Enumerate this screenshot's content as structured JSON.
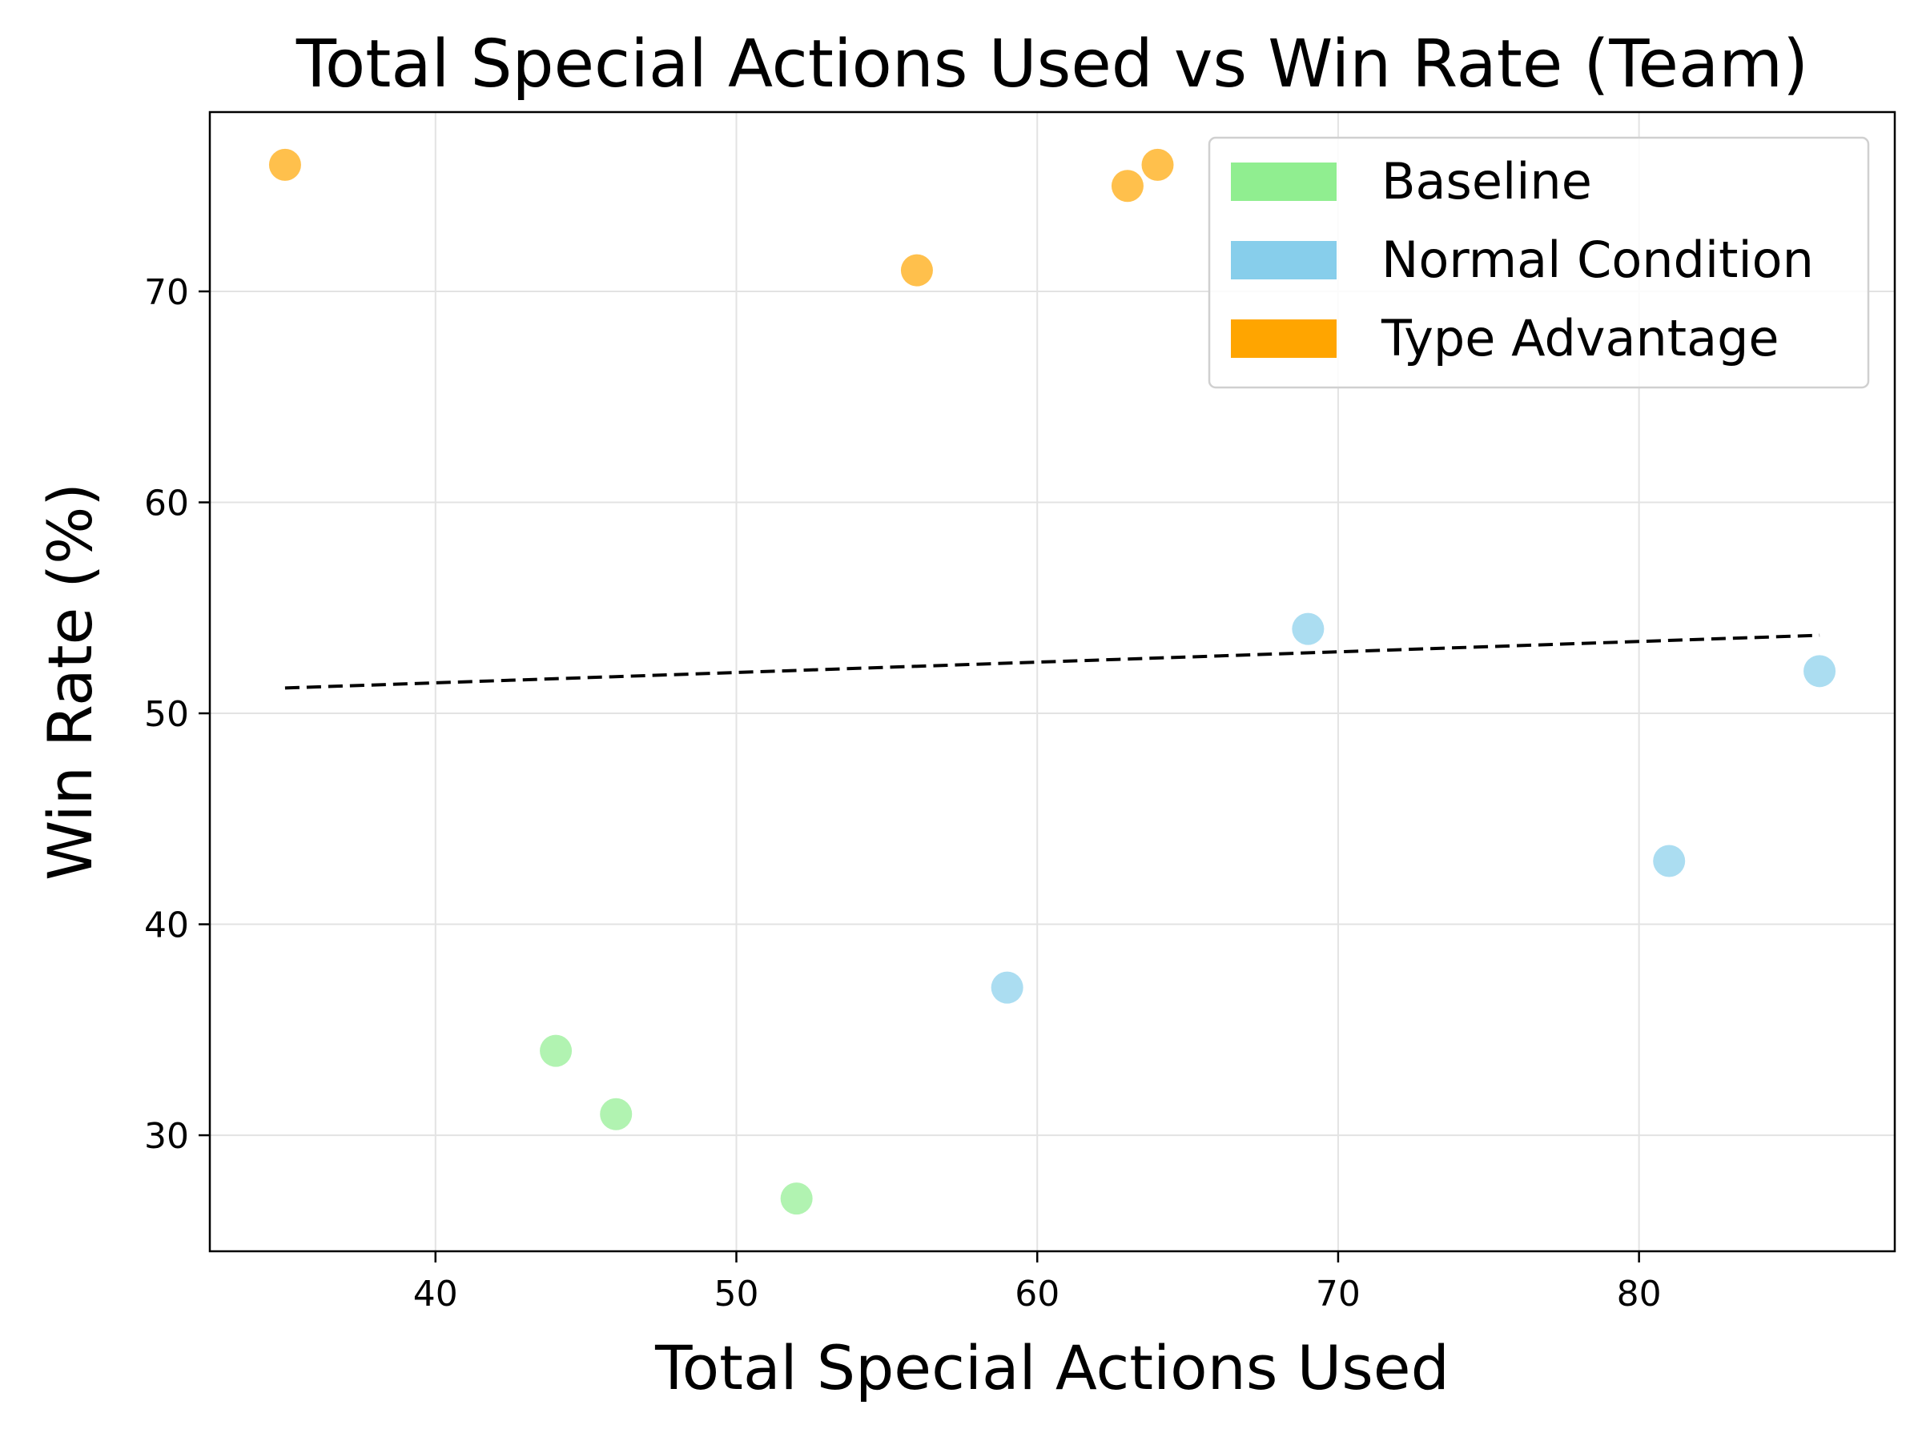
{
  "chart_data": {
    "type": "scatter",
    "title": "Total Special Actions Used vs Win Rate (Team)",
    "xlabel": "Total Special Actions Used",
    "ylabel": "Win Rate (%)",
    "xlim": [
      32.5,
      88.5
    ],
    "ylim": [
      24.5,
      78.5
    ],
    "xticks": [
      40,
      50,
      60,
      70,
      80
    ],
    "yticks": [
      30,
      40,
      50,
      60,
      70
    ],
    "grid": true,
    "legend_position": "upper right",
    "series": [
      {
        "name": "Baseline",
        "color": "#90ee90",
        "points": [
          {
            "x": 44,
            "y": 34
          },
          {
            "x": 46,
            "y": 31
          },
          {
            "x": 52,
            "y": 27
          }
        ]
      },
      {
        "name": "Normal Condition",
        "color": "#87ceeb",
        "points": [
          {
            "x": 59,
            "y": 37
          },
          {
            "x": 69,
            "y": 54
          },
          {
            "x": 81,
            "y": 43
          },
          {
            "x": 86,
            "y": 52
          }
        ]
      },
      {
        "name": "Type Advantage",
        "color": "#ffa500",
        "points": [
          {
            "x": 35,
            "y": 76
          },
          {
            "x": 56,
            "y": 71
          },
          {
            "x": 63,
            "y": 75
          },
          {
            "x": 64,
            "y": 76
          }
        ]
      }
    ],
    "trendline": {
      "style": "dashed",
      "color": "#000000",
      "from": {
        "x": 35,
        "y": 51.2
      },
      "to": {
        "x": 86,
        "y": 53.7
      }
    }
  }
}
